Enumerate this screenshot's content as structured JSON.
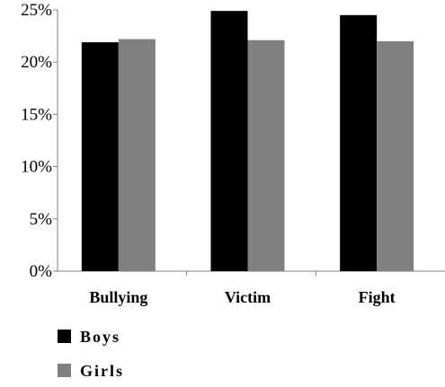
{
  "chart_data": {
    "type": "bar",
    "categories": [
      "Bullying",
      "Victim",
      "Fight"
    ],
    "series": [
      {
        "name": "Boys",
        "color": "#000000",
        "values": [
          21.9,
          24.9,
          24.5
        ]
      },
      {
        "name": "Girls",
        "color": "#808080",
        "values": [
          22.2,
          22.1,
          22.0
        ]
      }
    ],
    "y_ticks": [
      "0%",
      "5%",
      "10%",
      "15%",
      "20%",
      "25%"
    ],
    "ylim": [
      0,
      25
    ],
    "grid": false,
    "legend_position": "bottom-left"
  }
}
